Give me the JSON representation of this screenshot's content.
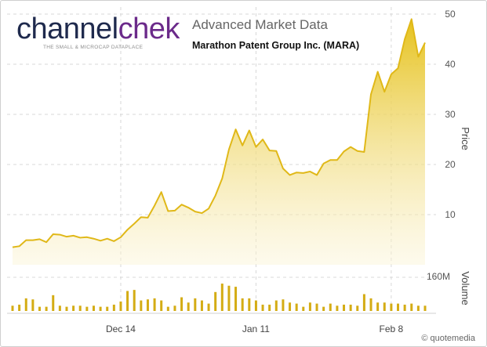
{
  "header": {
    "logo_part1": "channel",
    "logo_part2": "chek",
    "logo_tagline": "THE SMALL & MICROCAP DATAPLACE",
    "title": "Advanced Market Data",
    "subtitle": "Marathon Patent Group Inc. (MARA)"
  },
  "footer": {
    "credit": "© quotemedia"
  },
  "colors": {
    "line": "#e0b818",
    "fill_top": "#e6c21c",
    "fill_bottom": "#fbf4d6",
    "volume_bar": "#d4ac14",
    "grid": "#d8d8d8"
  },
  "chart_data": [
    {
      "type": "area",
      "ylabel": "Price",
      "ylim": [
        0,
        50
      ],
      "yticks": [
        10,
        20,
        30,
        40,
        50
      ],
      "x_tick_labels": [
        "Dec 14",
        "Jan 11",
        "Feb 8"
      ],
      "x_tick_index": [
        16,
        36,
        56
      ],
      "grid": true,
      "series": [
        {
          "values": [
            3.5,
            3.7,
            4.9,
            4.9,
            5.1,
            4.5,
            6.1,
            6.0,
            5.6,
            5.8,
            5.4,
            5.5,
            5.2,
            4.8,
            5.2,
            4.7,
            5.5,
            7.0,
            8.2,
            9.5,
            9.4,
            11.8,
            14.5,
            10.7,
            10.8,
            12.0,
            11.4,
            10.6,
            10.3,
            11.2,
            13.8,
            17.2,
            23.0,
            27.0,
            23.8,
            26.8,
            23.5,
            25.0,
            22.8,
            22.7,
            19.2,
            17.9,
            18.4,
            18.3,
            18.6,
            17.9,
            20.2,
            20.9,
            20.9,
            22.6,
            23.5,
            22.7,
            22.5,
            34.0,
            38.5,
            34.5,
            38.0,
            39.2,
            45.0,
            49.0,
            41.5,
            44.3
          ]
        }
      ]
    },
    {
      "type": "bar",
      "ylabel": "Volume",
      "tick_label": "160M",
      "ylim": [
        0,
        160
      ],
      "series": [
        {
          "values": [
            25,
            30,
            60,
            55,
            20,
            20,
            75,
            25,
            20,
            25,
            25,
            20,
            25,
            20,
            20,
            30,
            45,
            95,
            100,
            50,
            55,
            60,
            50,
            20,
            25,
            65,
            40,
            60,
            50,
            35,
            90,
            130,
            120,
            115,
            60,
            60,
            50,
            30,
            30,
            50,
            55,
            40,
            35,
            20,
            40,
            35,
            20,
            35,
            25,
            30,
            30,
            25,
            80,
            60,
            40,
            40,
            35,
            35,
            30,
            35,
            25,
            25
          ]
        }
      ]
    }
  ]
}
